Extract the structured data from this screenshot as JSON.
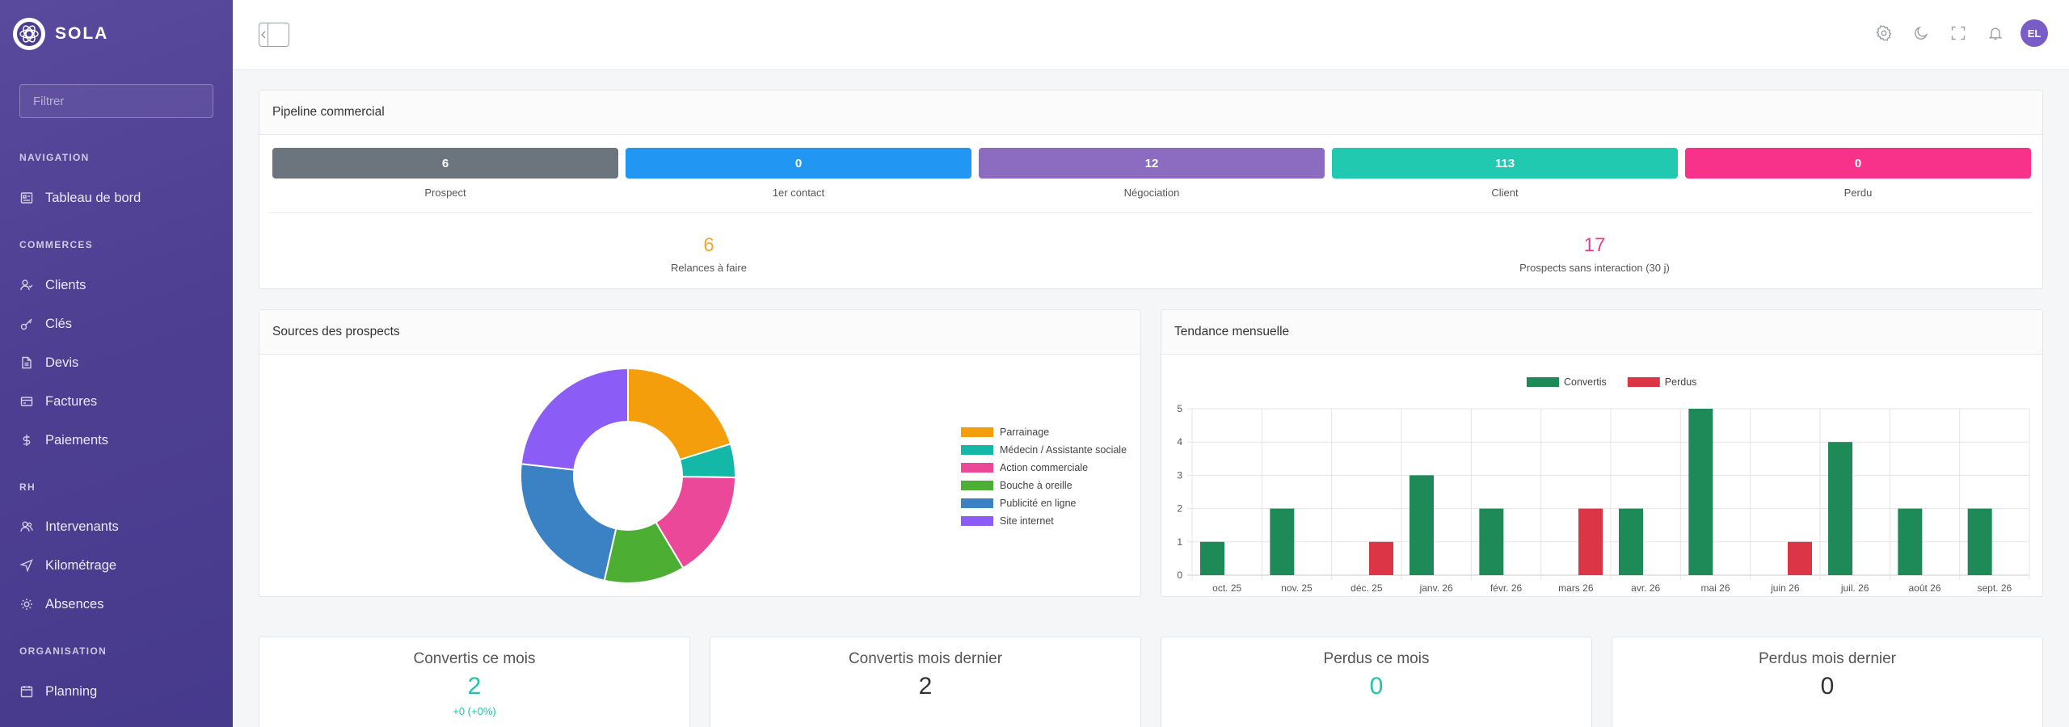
{
  "app": {
    "name": "SOLA"
  },
  "sidebar": {
    "filter_placeholder": "Filtrer",
    "sections": [
      {
        "title": "NAVIGATION",
        "items": [
          {
            "label": "Tableau de bord",
            "icon": "dashboard-icon"
          }
        ]
      },
      {
        "title": "COMMERCES",
        "items": [
          {
            "label": "Clients",
            "icon": "users-icon"
          },
          {
            "label": "Clés",
            "icon": "key-icon"
          },
          {
            "label": "Devis",
            "icon": "document-icon"
          },
          {
            "label": "Factures",
            "icon": "invoice-icon"
          },
          {
            "label": "Paiements",
            "icon": "dollar-icon"
          }
        ]
      },
      {
        "title": "RH",
        "items": [
          {
            "label": "Intervenants",
            "icon": "people-icon"
          },
          {
            "label": "Kilométrage",
            "icon": "navigation-icon"
          },
          {
            "label": "Absences",
            "icon": "sun-icon"
          }
        ]
      },
      {
        "title": "ORGANISATION",
        "items": [
          {
            "label": "Planning",
            "icon": "calendar-icon"
          }
        ]
      }
    ]
  },
  "topbar": {
    "icons": [
      "settings-icon",
      "moon-icon",
      "fullscreen-icon",
      "bell-icon"
    ],
    "avatar_initials": "EL",
    "avatar_color": "#7a5cc7"
  },
  "pipeline": {
    "title": "Pipeline commercial",
    "stages": [
      {
        "label": "Prospect",
        "value": "6",
        "color": "#6c757d"
      },
      {
        "label": "1er contact",
        "value": "0",
        "color": "#2196f3"
      },
      {
        "label": "Négociation",
        "value": "12",
        "color": "#8c6cc0"
      },
      {
        "label": "Client",
        "value": "113",
        "color": "#20c9b0"
      },
      {
        "label": "Perdu",
        "value": "0",
        "color": "#f8328a"
      }
    ],
    "kpis": [
      {
        "value": "6",
        "label": "Relances à faire",
        "color": "#f5a623"
      },
      {
        "value": "17",
        "label": "Prospects sans interaction (30 j)",
        "color": "#e83e8c"
      }
    ]
  },
  "sources": {
    "title": "Sources des prospects",
    "legend": [
      {
        "label": "Parrainage",
        "color": "#f59e0b"
      },
      {
        "label": "Médecin / Assistante sociale",
        "color": "#14b8a6"
      },
      {
        "label": "Action commerciale",
        "color": "#ec4899"
      },
      {
        "label": "Bouche à oreille",
        "color": "#4caf34"
      },
      {
        "label": "Publicité en ligne",
        "color": "#3b82c4"
      },
      {
        "label": "Site internet",
        "color": "#8b5cf6"
      }
    ]
  },
  "trend": {
    "title": "Tendance mensuelle"
  },
  "chart_data": [
    {
      "type": "pie",
      "title": "",
      "categories": [
        "Parrainage",
        "Médecin / Assistante sociale",
        "Action commerciale",
        "Bouche à oreille",
        "Publicité en ligne",
        "Site internet"
      ],
      "values": [
        20,
        5,
        16,
        12,
        23,
        23
      ],
      "colors": [
        "#f59e0b",
        "#14b8a6",
        "#ec4899",
        "#4caf34",
        "#3b82c4",
        "#8b5cf6"
      ],
      "donut": true,
      "legend_position": "right"
    },
    {
      "type": "bar",
      "title": "",
      "categories": [
        "oct. 25",
        "nov. 25",
        "déc. 25",
        "janv. 26",
        "févr. 26",
        "mars 26",
        "avr. 26",
        "mai 26",
        "juin 26",
        "juil. 26",
        "août 26",
        "sept. 26"
      ],
      "series": [
        {
          "name": "Convertis",
          "color": "#1e8a57",
          "values": [
            1,
            2,
            0,
            3,
            2,
            0,
            2,
            5,
            0,
            4,
            2,
            2
          ]
        },
        {
          "name": "Perdus",
          "color": "#dc3545",
          "values": [
            0,
            0,
            1,
            0,
            0,
            2,
            0,
            0,
            1,
            0,
            0,
            0
          ]
        }
      ],
      "yticks": [
        0,
        1,
        2,
        3,
        4,
        5
      ],
      "ylim": [
        0,
        5
      ],
      "grid": true,
      "legend_position": "top"
    }
  ],
  "stats": [
    {
      "title": "Convertis ce mois",
      "value": "2",
      "sub": "+0 (+0%)",
      "color": "#20c4a8"
    },
    {
      "title": "Convertis mois dernier",
      "value": "2",
      "sub": "",
      "color": "#333333"
    },
    {
      "title": "Perdus ce mois",
      "value": "0",
      "sub": "",
      "color": "#20c4a8"
    },
    {
      "title": "Perdus mois dernier",
      "value": "0",
      "sub": "",
      "color": "#333333"
    }
  ]
}
